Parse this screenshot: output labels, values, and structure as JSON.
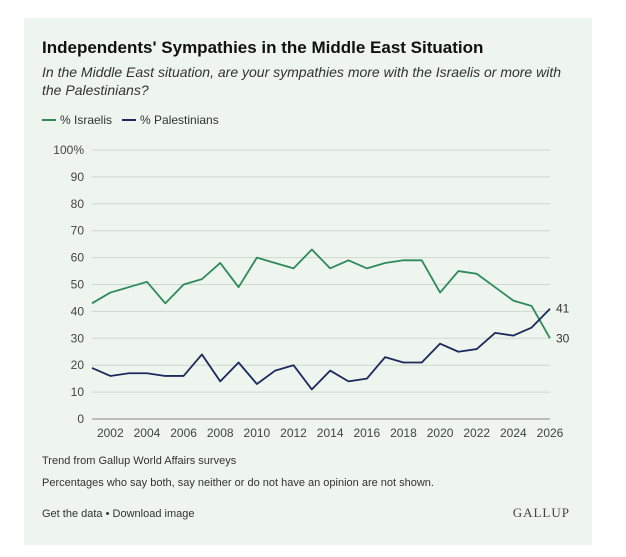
{
  "chart_data": {
    "type": "line",
    "title": "Independents' Sympathies in the Middle East Situation",
    "subtitle": "In the Middle East situation, are your sympathies more with the Israelis or more with the Palestinians?",
    "x": [
      2001,
      2002,
      2003,
      2004,
      2005,
      2006,
      2007,
      2008,
      2009,
      2010,
      2011,
      2012,
      2013,
      2014,
      2015,
      2016,
      2017,
      2018,
      2019,
      2020,
      2021,
      2022,
      2023,
      2024,
      2025,
      2026
    ],
    "series": [
      {
        "name": "% Israelis",
        "color": "#2e8b57",
        "values": [
          43,
          47,
          49,
          51,
          43,
          50,
          52,
          58,
          49,
          60,
          58,
          56,
          63,
          56,
          59,
          56,
          58,
          59,
          59,
          47,
          55,
          54,
          49,
          44,
          42,
          30
        ],
        "end_label": "30"
      },
      {
        "name": "% Palestinians",
        "color": "#1b2a5c",
        "values": [
          19,
          16,
          17,
          17,
          16,
          16,
          24,
          14,
          21,
          13,
          18,
          20,
          11,
          18,
          14,
          15,
          23,
          21,
          21,
          28,
          25,
          26,
          32,
          31,
          34,
          41
        ],
        "end_label": "41"
      }
    ],
    "x_ticks": [
      2002,
      2004,
      2006,
      2008,
      2010,
      2012,
      2014,
      2016,
      2018,
      2020,
      2022,
      2024,
      2026
    ],
    "y_ticks": [
      0,
      10,
      20,
      30,
      40,
      50,
      60,
      70,
      80,
      90,
      100
    ],
    "y_top_label": "100%",
    "xlim": [
      2001,
      2026
    ],
    "ylim": [
      0,
      100
    ],
    "grid": true,
    "legend_position": "top-left"
  },
  "notes": {
    "source": "Trend from Gallup World Affairs surveys",
    "footnote": "Percentages who say both, say neither or do not have an opinion are not shown."
  },
  "links": {
    "get_data": "Get the data",
    "separator": "•",
    "download": "Download image"
  },
  "brand": "GALLUP"
}
